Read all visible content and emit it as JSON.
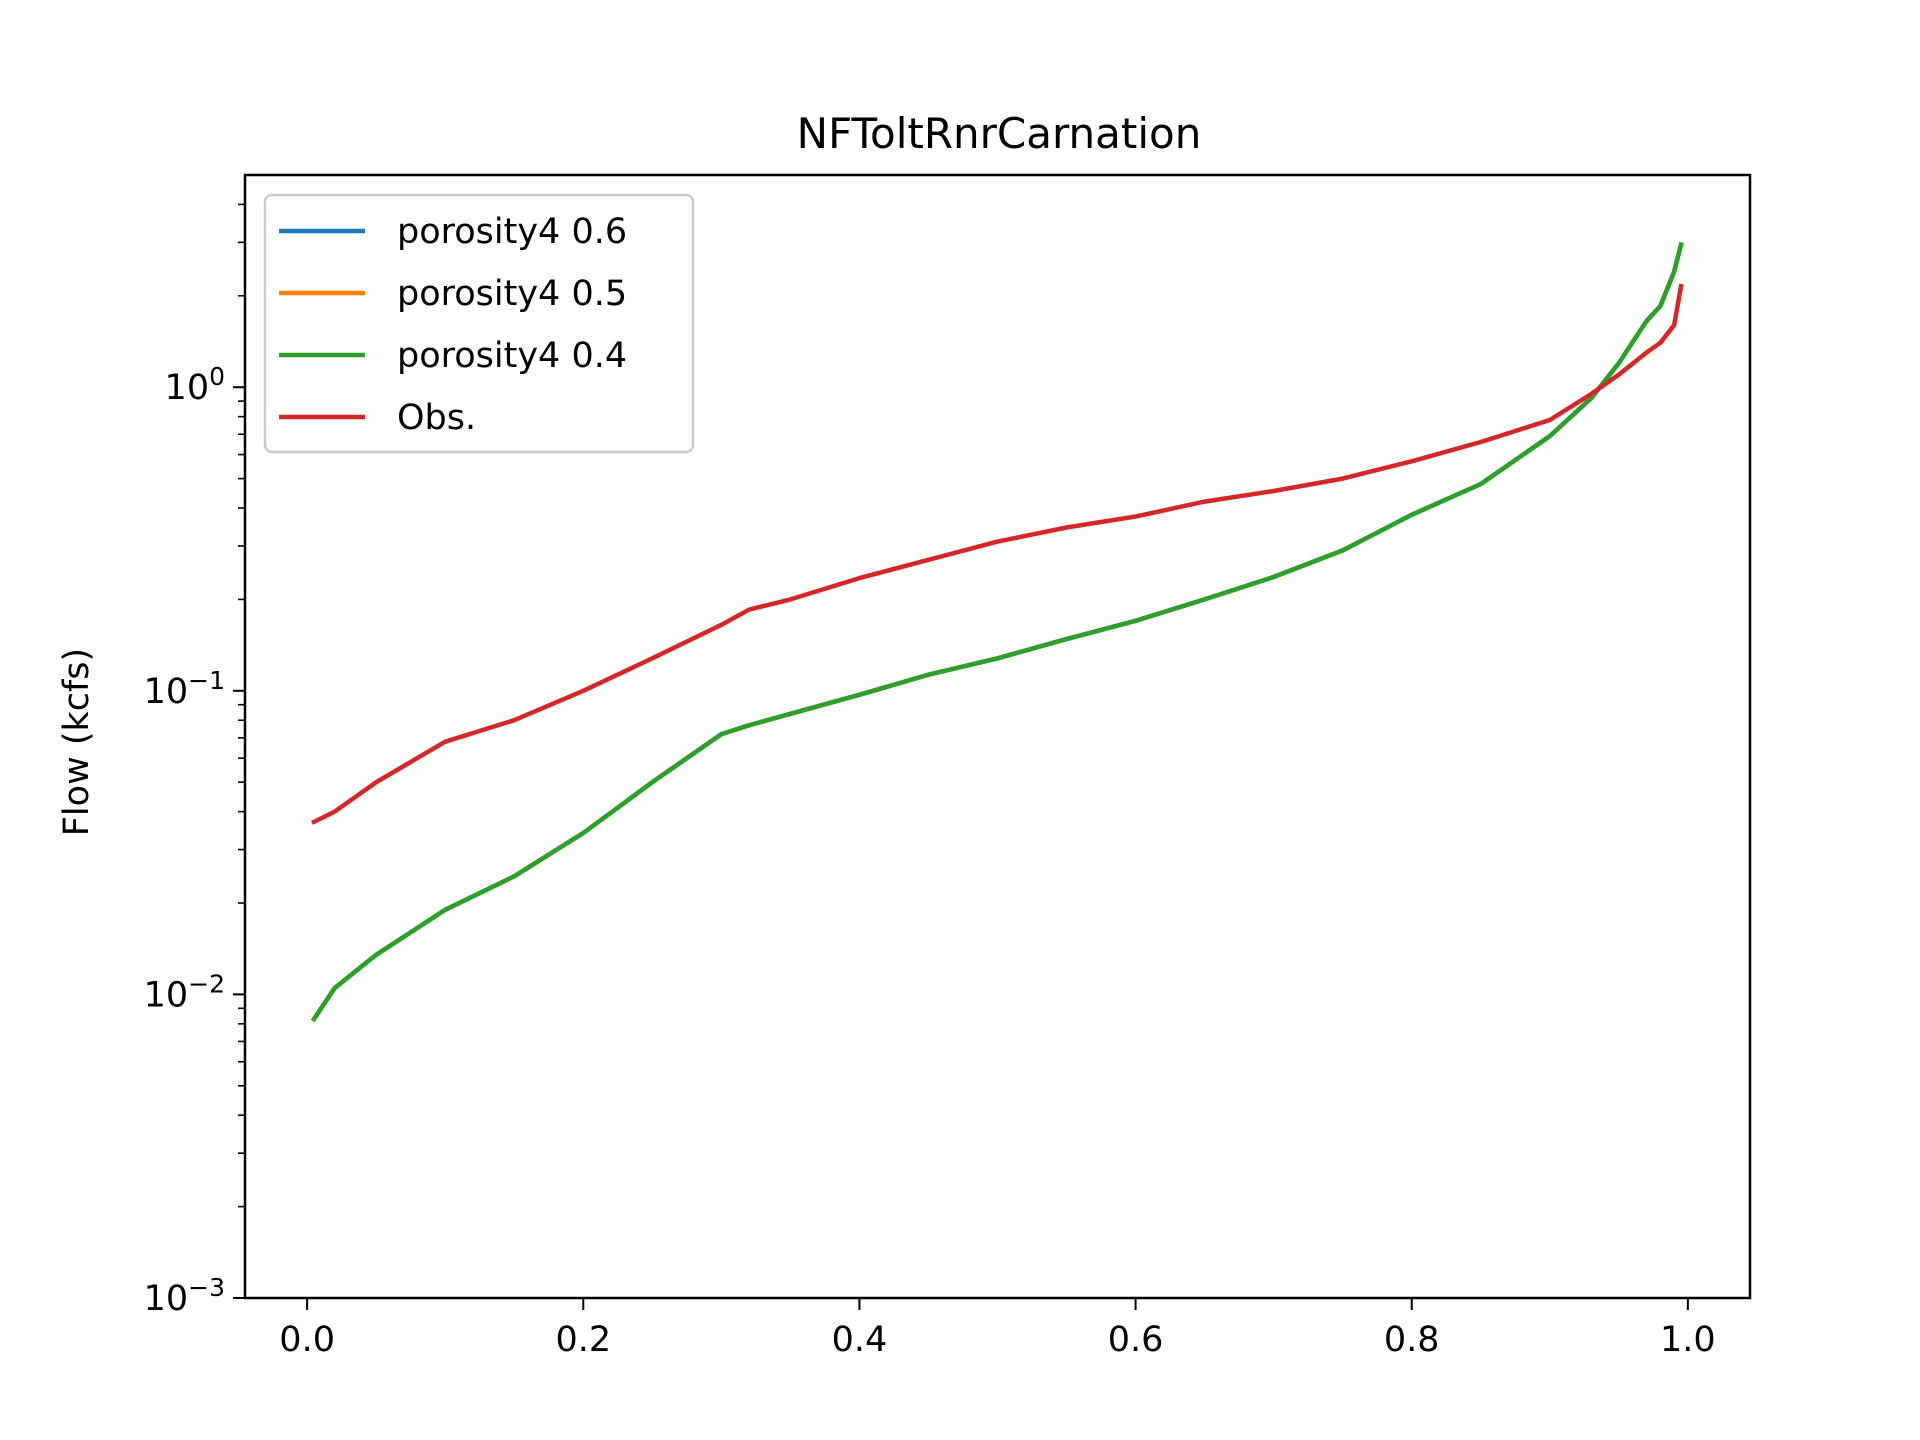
{
  "chart_data": {
    "type": "line",
    "title": "NFToltRnrCarnation",
    "xlabel": "",
    "ylabel": "Flow (kcfs)",
    "xlim": [
      -0.045,
      1.045
    ],
    "ylim": [
      0.001,
      5
    ],
    "yscale": "log",
    "xticks": [
      0.0,
      0.2,
      0.4,
      0.6,
      0.8,
      1.0
    ],
    "xtick_labels": [
      "0.0",
      "0.2",
      "0.4",
      "0.6",
      "0.8",
      "1.0"
    ],
    "yticks": [
      {
        "value": 1,
        "base": "10",
        "exp": "0"
      },
      {
        "value": 0.1,
        "base": "10",
        "exp": "−1"
      },
      {
        "value": 0.01,
        "base": "10",
        "exp": "−2"
      },
      {
        "value": 0.001,
        "base": "10",
        "exp": "−3"
      }
    ],
    "grid": false,
    "legend_position": "upper-left",
    "x": [
      0.005,
      0.02,
      0.05,
      0.1,
      0.15,
      0.2,
      0.25,
      0.3,
      0.32,
      0.35,
      0.4,
      0.45,
      0.5,
      0.55,
      0.6,
      0.65,
      0.7,
      0.75,
      0.8,
      0.85,
      0.9,
      0.93,
      0.95,
      0.97,
      0.98,
      0.99,
      0.995
    ],
    "series": [
      {
        "name": "porosity4 0.6",
        "color": "#1f77b4",
        "values": [
          0.0083,
          0.0105,
          0.0135,
          0.019,
          0.0245,
          0.034,
          0.05,
          0.072,
          0.077,
          0.084,
          0.097,
          0.113,
          0.128,
          0.148,
          0.17,
          0.2,
          0.237,
          0.29,
          0.38,
          0.48,
          0.69,
          0.92,
          1.2,
          1.65,
          1.85,
          2.4,
          2.95
        ]
      },
      {
        "name": "porosity4 0.5",
        "color": "#ff7f0e",
        "values": [
          0.0083,
          0.0105,
          0.0135,
          0.019,
          0.0245,
          0.034,
          0.05,
          0.072,
          0.077,
          0.084,
          0.097,
          0.113,
          0.128,
          0.148,
          0.17,
          0.2,
          0.237,
          0.29,
          0.38,
          0.48,
          0.69,
          0.92,
          1.2,
          1.65,
          1.85,
          2.4,
          2.95
        ]
      },
      {
        "name": "porosity4 0.4",
        "color": "#2ca02c",
        "values": [
          0.0083,
          0.0105,
          0.0135,
          0.019,
          0.0245,
          0.034,
          0.05,
          0.072,
          0.077,
          0.084,
          0.097,
          0.113,
          0.128,
          0.148,
          0.17,
          0.2,
          0.237,
          0.29,
          0.38,
          0.48,
          0.69,
          0.92,
          1.2,
          1.65,
          1.85,
          2.4,
          2.95
        ]
      },
      {
        "name": "Obs.",
        "color": "#d62728",
        "values": [
          0.037,
          0.04,
          0.05,
          0.068,
          0.08,
          0.1,
          0.128,
          0.165,
          0.185,
          0.2,
          0.235,
          0.27,
          0.31,
          0.345,
          0.375,
          0.42,
          0.455,
          0.5,
          0.57,
          0.66,
          0.78,
          0.95,
          1.1,
          1.3,
          1.4,
          1.6,
          2.15
        ]
      }
    ]
  }
}
